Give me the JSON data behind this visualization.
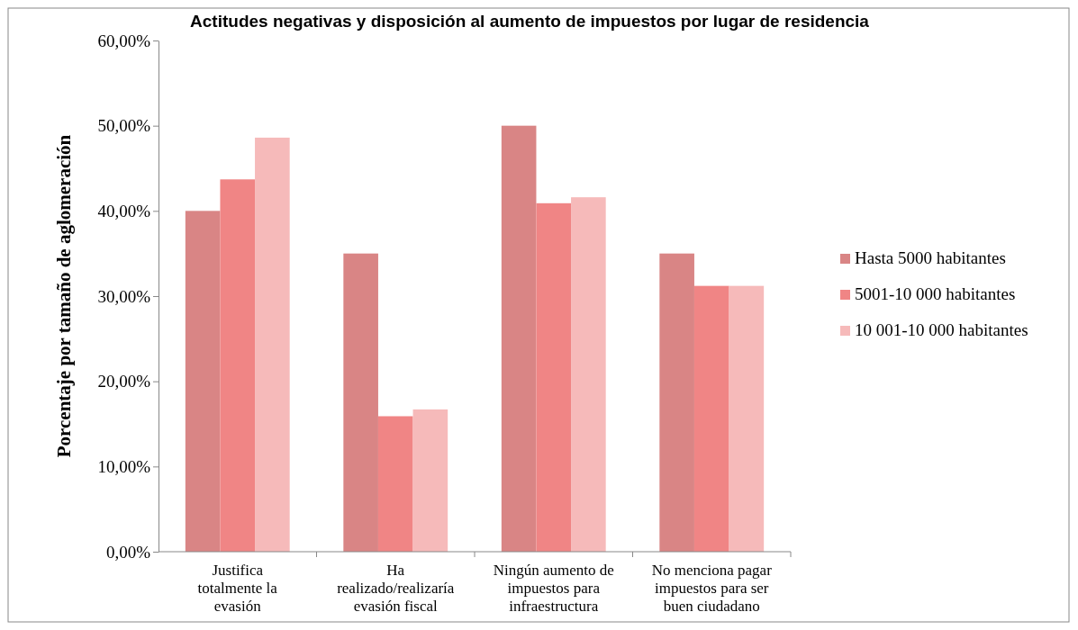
{
  "chart_data": {
    "type": "bar",
    "title": "Actitudes negativas y disposición al aumento de impuestos por lugar de residencia",
    "ylabel": "Porcentaje por tamaño de aglomeración",
    "categories": [
      "Justifica totalmente la evasión",
      "Ha realizado/realizaría evasión fiscal",
      "Ningún aumento de impuestos para infraestructura",
      "No menciona pagar impuestos para ser buen ciudadano"
    ],
    "series": [
      {
        "name": "Hasta 5000 habitantes",
        "color": "#d98585",
        "values": [
          40,
          35,
          50,
          35
        ]
      },
      {
        "name": "5001-10 000 habitantes",
        "color": "#f08585",
        "values": [
          43.7,
          15.9,
          40.9,
          31.2
        ]
      },
      {
        "name": "10 001-10 000 habitantes",
        "color": "#f6baba",
        "values": [
          48.6,
          16.7,
          41.6,
          31.2
        ]
      }
    ],
    "ylim": [
      0,
      60
    ],
    "yticks": [
      {
        "value": 0,
        "label": "0,00%"
      },
      {
        "value": 10,
        "label": "10,00%"
      },
      {
        "value": 20,
        "label": "20,00%"
      },
      {
        "value": 30,
        "label": "30,00%"
      },
      {
        "value": 40,
        "label": "40,00%"
      },
      {
        "value": 50,
        "label": "50,00%"
      },
      {
        "value": 60,
        "label": "60,00%"
      }
    ],
    "grid": false,
    "legend": "right"
  }
}
